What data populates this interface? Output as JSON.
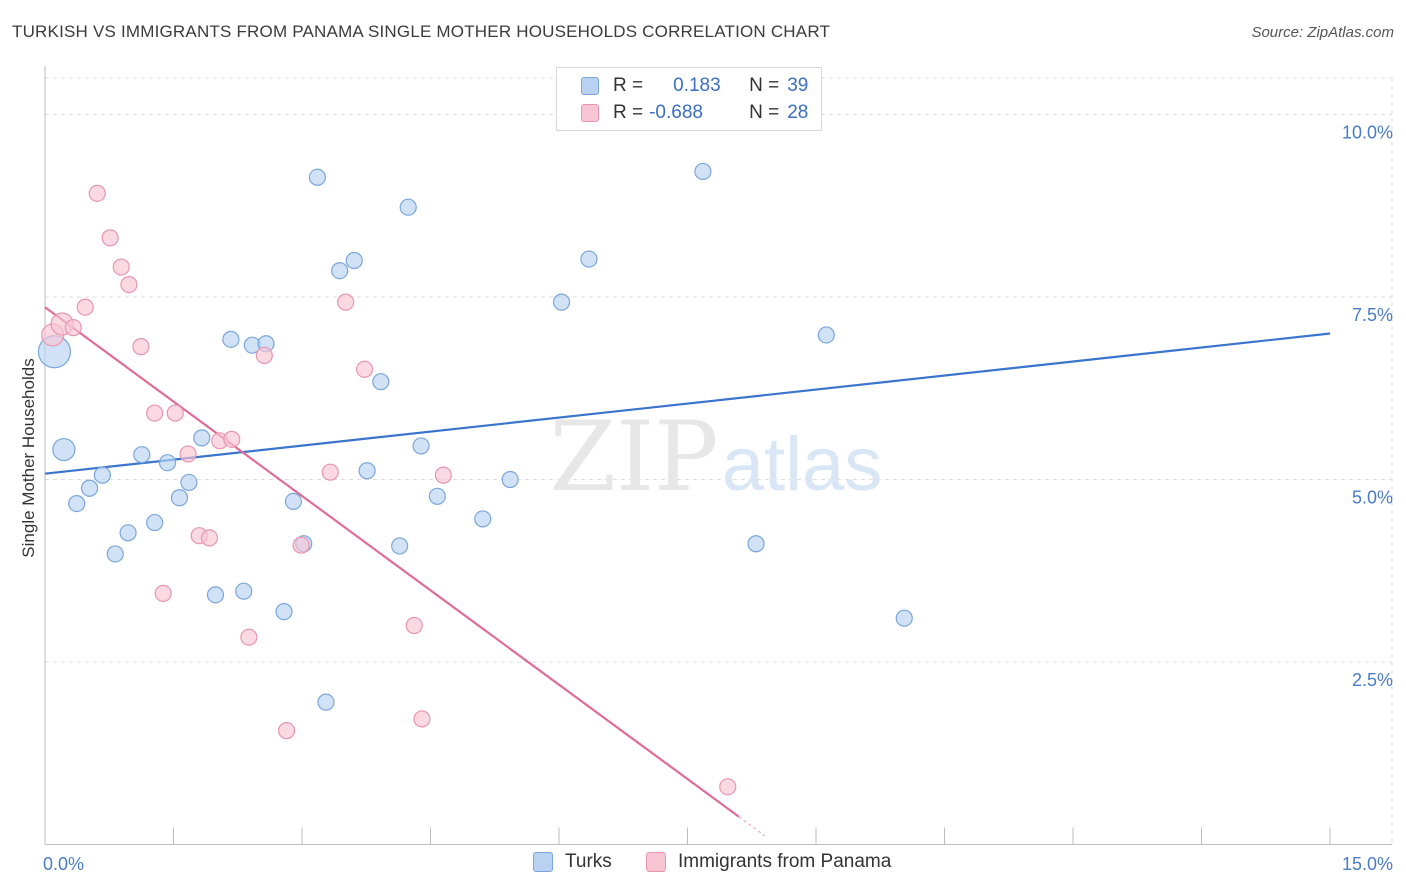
{
  "title": "TURKISH VS IMMIGRANTS FROM PANAMA SINGLE MOTHER HOUSEHOLDS CORRELATION CHART",
  "source": "Source: ZipAtlas.com",
  "watermark": {
    "zip": "ZIP",
    "atlas": "atlas"
  },
  "legend": {
    "turks": {
      "r_label": "R =",
      "r_value": "0.183",
      "n_label": "N =",
      "n_value": "39"
    },
    "panama": {
      "r_label": "R =",
      "r_value": "-0.688",
      "n_label": "N =",
      "n_value": "28"
    }
  },
  "bottom_legend": {
    "turks": "Turks",
    "panama": "Immigrants from Panama"
  },
  "colors": {
    "turks_fill": "#b9d2f2",
    "turks_stroke": "#7aa6dd",
    "turks_line": "#3a74cc",
    "panama_fill": "#f8c5d4",
    "panama_stroke": "#e995b1",
    "panama_line": "#e06b97",
    "tick": "#4a7cc7",
    "grid": "#dddddd"
  },
  "chart_data": {
    "type": "scatter",
    "title": "TURKISH VS IMMIGRANTS FROM PANAMA SINGLE MOTHER HOUSEHOLDS CORRELATION CHART",
    "xlabel": "",
    "ylabel": "Single Mother Households",
    "xlim": [
      0,
      15
    ],
    "ylim": [
      0,
      10.5
    ],
    "x_tick_labels": [
      "0.0%",
      "15.0%"
    ],
    "y_ticks": [
      2.5,
      5.0,
      7.5,
      10.0
    ],
    "y_tick_labels": [
      "2.5%",
      "5.0%",
      "7.5%",
      "10.0%"
    ],
    "grid": true,
    "legend_placement": "top-center",
    "series": [
      {
        "name": "Turks",
        "r": 0.183,
        "n": 39,
        "trend": {
          "x": [
            0,
            15
          ],
          "y": [
            5.08,
            7.0
          ]
        },
        "points": [
          {
            "x": 0.11,
            "y": 6.75,
            "s": 3
          },
          {
            "x": 0.22,
            "y": 5.41,
            "s": 2
          },
          {
            "x": 0.37,
            "y": 4.67
          },
          {
            "x": 0.52,
            "y": 4.88
          },
          {
            "x": 0.67,
            "y": 5.06
          },
          {
            "x": 0.82,
            "y": 3.98
          },
          {
            "x": 0.97,
            "y": 4.27
          },
          {
            "x": 1.13,
            "y": 5.34
          },
          {
            "x": 1.28,
            "y": 4.41
          },
          {
            "x": 1.43,
            "y": 5.23
          },
          {
            "x": 1.57,
            "y": 4.75
          },
          {
            "x": 1.68,
            "y": 4.96
          },
          {
            "x": 1.83,
            "y": 5.57
          },
          {
            "x": 1.99,
            "y": 3.42
          },
          {
            "x": 2.17,
            "y": 6.92
          },
          {
            "x": 2.32,
            "y": 3.47
          },
          {
            "x": 2.42,
            "y": 6.84
          },
          {
            "x": 2.58,
            "y": 6.86
          },
          {
            "x": 2.79,
            "y": 3.19
          },
          {
            "x": 2.9,
            "y": 4.7
          },
          {
            "x": 3.02,
            "y": 4.12
          },
          {
            "x": 3.18,
            "y": 9.14
          },
          {
            "x": 3.28,
            "y": 1.95
          },
          {
            "x": 3.44,
            "y": 7.86
          },
          {
            "x": 3.61,
            "y": 8.0
          },
          {
            "x": 3.76,
            "y": 5.12
          },
          {
            "x": 3.92,
            "y": 6.34
          },
          {
            "x": 4.14,
            "y": 4.09
          },
          {
            "x": 4.24,
            "y": 8.73
          },
          {
            "x": 4.39,
            "y": 5.46
          },
          {
            "x": 4.58,
            "y": 4.77
          },
          {
            "x": 5.11,
            "y": 4.46
          },
          {
            "x": 5.43,
            "y": 5.0
          },
          {
            "x": 6.03,
            "y": 7.43
          },
          {
            "x": 6.35,
            "y": 8.02
          },
          {
            "x": 7.68,
            "y": 9.22
          },
          {
            "x": 8.3,
            "y": 4.12
          },
          {
            "x": 9.12,
            "y": 6.98
          },
          {
            "x": 10.03,
            "y": 3.1
          }
        ]
      },
      {
        "name": "Immigrants from Panama",
        "r": -0.688,
        "n": 28,
        "trend": {
          "x": [
            0,
            8.1
          ],
          "y": [
            7.36,
            0.38
          ]
        },
        "trend_dash": {
          "x": [
            8.1,
            8.4
          ],
          "y": [
            0.38,
            0.12
          ]
        },
        "points": [
          {
            "x": 0.09,
            "y": 6.98,
            "s": 2
          },
          {
            "x": 0.2,
            "y": 7.13,
            "s": 2
          },
          {
            "x": 0.33,
            "y": 7.08
          },
          {
            "x": 0.47,
            "y": 7.36
          },
          {
            "x": 0.61,
            "y": 8.92
          },
          {
            "x": 0.76,
            "y": 8.31
          },
          {
            "x": 0.89,
            "y": 7.91
          },
          {
            "x": 0.98,
            "y": 7.67
          },
          {
            "x": 1.12,
            "y": 6.82
          },
          {
            "x": 1.28,
            "y": 5.91
          },
          {
            "x": 1.38,
            "y": 3.44
          },
          {
            "x": 1.52,
            "y": 5.91
          },
          {
            "x": 1.67,
            "y": 5.35
          },
          {
            "x": 1.8,
            "y": 4.23
          },
          {
            "x": 1.92,
            "y": 4.2
          },
          {
            "x": 2.04,
            "y": 5.53
          },
          {
            "x": 2.18,
            "y": 5.55
          },
          {
            "x": 2.38,
            "y": 2.84
          },
          {
            "x": 2.56,
            "y": 6.7
          },
          {
            "x": 2.82,
            "y": 1.56
          },
          {
            "x": 2.99,
            "y": 4.1
          },
          {
            "x": 3.33,
            "y": 5.1
          },
          {
            "x": 3.51,
            "y": 7.43
          },
          {
            "x": 3.73,
            "y": 6.51
          },
          {
            "x": 4.31,
            "y": 3.0
          },
          {
            "x": 4.4,
            "y": 1.72
          },
          {
            "x": 4.65,
            "y": 5.06
          },
          {
            "x": 7.97,
            "y": 0.79
          }
        ]
      }
    ]
  }
}
